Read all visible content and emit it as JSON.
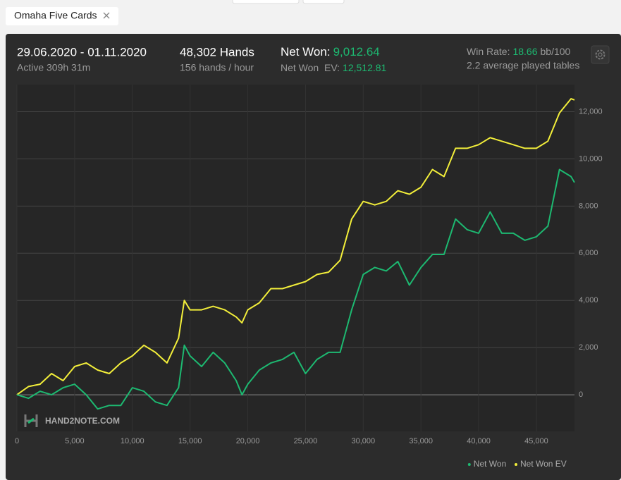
{
  "header": {
    "tab": "Omaha Five Cards",
    "dates": "29.06.2020 - 01.11.2020",
    "active": "Active 309h 31m",
    "hands": "48,302 Hands",
    "hands_rate": "156 hands / hour",
    "net_won_label": "Net Won:",
    "net_won": "9,012.64",
    "net_won_ev_label": "Net Won  EV:",
    "net_won_ev": "12,512.81",
    "win_rate_label": "Win Rate:",
    "win_rate": "18.66",
    "win_rate_unit": "bb/100",
    "tables": "2.2 average played tables",
    "watermark": "HAND2NOTE.COM"
  },
  "chart_data": {
    "type": "line",
    "x": [
      0,
      1000,
      2000,
      3000,
      4000,
      5000,
      6000,
      7000,
      8000,
      9000,
      10000,
      11000,
      12000,
      13000,
      14000,
      14500,
      15000,
      16000,
      17000,
      18000,
      19000,
      19500,
      20000,
      21000,
      22000,
      23000,
      24000,
      25000,
      26000,
      27000,
      28000,
      29000,
      30000,
      31000,
      32000,
      33000,
      34000,
      35000,
      36000,
      37000,
      38000,
      39000,
      40000,
      41000,
      42000,
      43000,
      44000,
      45000,
      46000,
      47000,
      48000,
      48302
    ],
    "series": [
      {
        "name": "Net Won",
        "color": "#1db971",
        "values": [
          0,
          -150,
          150,
          0,
          300,
          450,
          0,
          -600,
          -450,
          -450,
          300,
          150,
          -300,
          -450,
          300,
          2100,
          1650,
          1200,
          1800,
          1350,
          600,
          0,
          450,
          1050,
          1350,
          1500,
          1800,
          900,
          1500,
          1800,
          1800,
          3600,
          5100,
          5400,
          5250,
          5650,
          4650,
          5400,
          5950,
          5950,
          7450,
          7000,
          6850,
          7750,
          6850,
          6850,
          6550,
          6700,
          7150,
          9550,
          9250,
          9000
        ]
      },
      {
        "name": "Net Won EV",
        "color": "#f2ee3a",
        "values": [
          0,
          350,
          450,
          900,
          600,
          1200,
          1350,
          1050,
          900,
          1350,
          1650,
          2100,
          1800,
          1350,
          2400,
          4000,
          3600,
          3600,
          3750,
          3600,
          3300,
          3050,
          3600,
          3900,
          4500,
          4500,
          4650,
          4800,
          5100,
          5200,
          5700,
          7450,
          8200,
          8050,
          8200,
          8650,
          8500,
          8800,
          9550,
          9250,
          10450,
          10450,
          10600,
          10900,
          10750,
          10600,
          10450,
          10450,
          10750,
          11950,
          12550,
          12500
        ]
      }
    ],
    "xlim": [
      0,
      48302
    ],
    "ylim": [
      -1550,
      13150
    ],
    "xticks": [
      0,
      {
        "value": 5000,
        "label": "5,000"
      },
      {
        "value": 10000,
        "label": "10,000"
      },
      {
        "value": 15000,
        "label": "15,000"
      },
      {
        "value": 20000,
        "label": "20,000"
      },
      {
        "value": 25000,
        "label": "25,000"
      },
      {
        "value": 30000,
        "label": "30,000"
      },
      {
        "value": 35000,
        "label": "35,000"
      },
      {
        "value": 40000,
        "label": "40,000"
      },
      {
        "value": 45000,
        "label": "45,000"
      }
    ],
    "yticks": [
      0,
      {
        "value": 2000,
        "label": "2,000"
      },
      {
        "value": 4000,
        "label": "4,000"
      },
      {
        "value": 6000,
        "label": "6,000"
      },
      {
        "value": 8000,
        "label": "8,000"
      },
      {
        "value": 10000,
        "label": "10,000"
      },
      {
        "value": 12000,
        "label": "12,000"
      }
    ],
    "grid": true,
    "legend": "bottom-right"
  }
}
